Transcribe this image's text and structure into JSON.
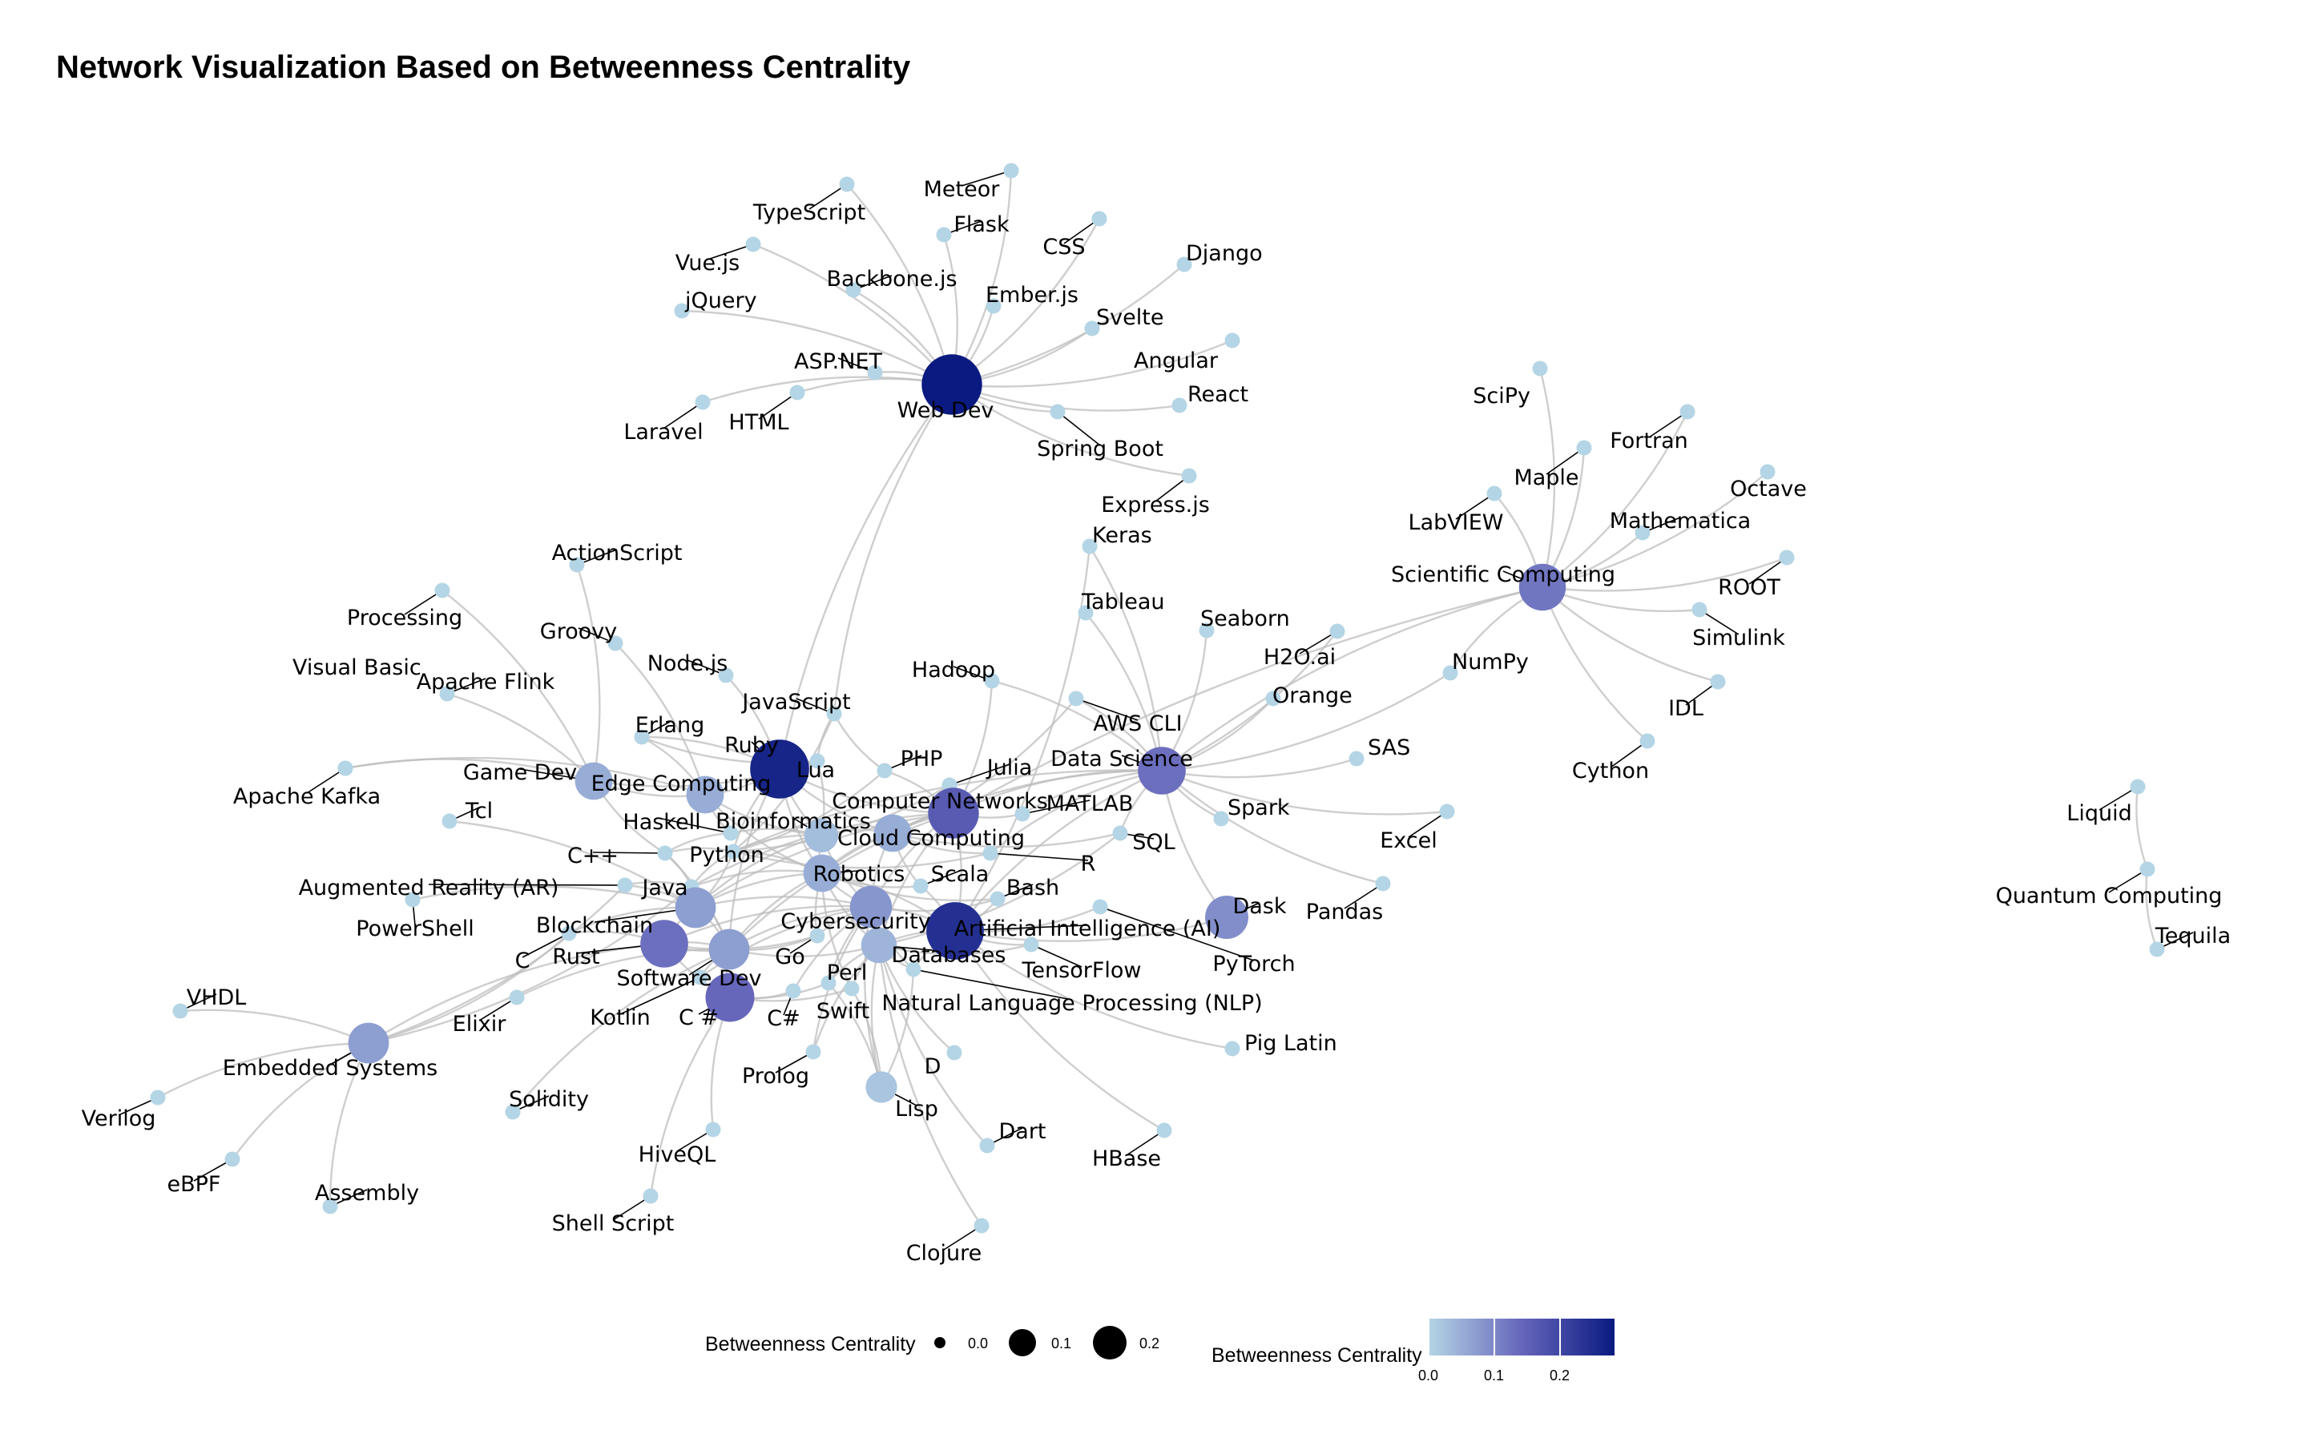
{
  "title": "Network Visualization Based on Betweenness Centrality",
  "colors": {
    "low": "#b4d5e5",
    "mid": "#6666bb",
    "high": "#0a1a80",
    "edge": "#bdbdbd"
  },
  "legend": {
    "size_title": "Betweenness Centrality",
    "size_breaks": [
      "0.0",
      "0.1",
      "0.2"
    ],
    "size_values": [
      0.0,
      0.1,
      0.2
    ],
    "color_title": "Betweenness Centrality",
    "color_breaks": [
      "0.0",
      "0.1",
      "0.2"
    ],
    "color_range": [
      0.0,
      0.28
    ]
  },
  "nodes": [
    {
      "id": "Web Dev",
      "c": 0.28
    },
    {
      "id": "TypeScript",
      "c": 0
    },
    {
      "id": "Meteor",
      "c": 0
    },
    {
      "id": "Flask",
      "c": 0
    },
    {
      "id": "CSS",
      "c": 0
    },
    {
      "id": "Vue.js",
      "c": 0
    },
    {
      "id": "Django",
      "c": 0
    },
    {
      "id": "jQuery",
      "c": 0
    },
    {
      "id": "Backbone.js",
      "c": 0
    },
    {
      "id": "Ember.js",
      "c": 0
    },
    {
      "id": "Svelte",
      "c": 0
    },
    {
      "id": "ASP.NET",
      "c": 0
    },
    {
      "id": "Angular",
      "c": 0
    },
    {
      "id": "React",
      "c": 0
    },
    {
      "id": "HTML",
      "c": 0
    },
    {
      "id": "Laravel",
      "c": 0
    },
    {
      "id": "Spring Boot",
      "c": 0
    },
    {
      "id": "Express.js",
      "c": 0
    },
    {
      "id": "Scientific Computing",
      "c": 0.12
    },
    {
      "id": "SciPy",
      "c": 0
    },
    {
      "id": "Fortran",
      "c": 0
    },
    {
      "id": "Maple",
      "c": 0
    },
    {
      "id": "Octave",
      "c": 0
    },
    {
      "id": "LabVIEW",
      "c": 0
    },
    {
      "id": "Mathematica",
      "c": 0
    },
    {
      "id": "ROOT",
      "c": 0
    },
    {
      "id": "Simulink",
      "c": 0
    },
    {
      "id": "NumPy",
      "c": 0
    },
    {
      "id": "IDL",
      "c": 0
    },
    {
      "id": "Cython",
      "c": 0
    },
    {
      "id": "Keras",
      "c": 0
    },
    {
      "id": "Tableau",
      "c": 0
    },
    {
      "id": "Seaborn",
      "c": 0
    },
    {
      "id": "H2O.ai",
      "c": 0
    },
    {
      "id": "Orange",
      "c": 0
    },
    {
      "id": "AWS CLI",
      "c": 0
    },
    {
      "id": "Hadoop",
      "c": 0
    },
    {
      "id": "Data Science",
      "c": 0.13
    },
    {
      "id": "SAS",
      "c": 0
    },
    {
      "id": "Spark",
      "c": 0
    },
    {
      "id": "Excel",
      "c": 0
    },
    {
      "id": "Pandas",
      "c": 0
    },
    {
      "id": "Dask",
      "c": 0.09
    },
    {
      "id": "PyTorch",
      "c": 0
    },
    {
      "id": "Pig Latin",
      "c": 0
    },
    {
      "id": "HBase",
      "c": 0
    },
    {
      "id": "ActionScript",
      "c": 0
    },
    {
      "id": "Processing",
      "c": 0
    },
    {
      "id": "Groovy",
      "c": 0
    },
    {
      "id": "Node.js",
      "c": 0
    },
    {
      "id": "Visual Basic",
      "c": 0
    },
    {
      "id": "Apache Flink",
      "c": 0
    },
    {
      "id": "JavaScript",
      "c": 0
    },
    {
      "id": "Erlang",
      "c": 0
    },
    {
      "id": "Ruby",
      "c": 0.26
    },
    {
      "id": "Lua",
      "c": 0
    },
    {
      "id": "PHP",
      "c": 0
    },
    {
      "id": "Julia",
      "c": 0
    },
    {
      "id": "Game Dev",
      "c": 0.05
    },
    {
      "id": "Edge Computing",
      "c": 0.05
    },
    {
      "id": "Apache Kafka",
      "c": 0
    },
    {
      "id": "Tcl",
      "c": 0
    },
    {
      "id": "Haskell",
      "c": 0
    },
    {
      "id": "Bioinformatics",
      "c": 0.03
    },
    {
      "id": "Computer Networks",
      "c": 0.16
    },
    {
      "id": "MATLAB",
      "c": 0
    },
    {
      "id": "Cloud Computing",
      "c": 0.05
    },
    {
      "id": "C++",
      "c": 0
    },
    {
      "id": "Python",
      "c": 0
    },
    {
      "id": "Robotics",
      "c": 0.05
    },
    {
      "id": "Scala",
      "c": 0
    },
    {
      "id": "R",
      "c": 0
    },
    {
      "id": "SQL",
      "c": 0
    },
    {
      "id": "Augmented Reality (AR)",
      "c": 0
    },
    {
      "id": "Java",
      "c": 0
    },
    {
      "id": "Bash",
      "c": 0
    },
    {
      "id": "PowerShell",
      "c": 0
    },
    {
      "id": "Blockchain",
      "c": 0.07
    },
    {
      "id": "Cybersecurity",
      "c": 0.08
    },
    {
      "id": "Artificial Intelligence (AI)",
      "c": 0.24
    },
    {
      "id": "C",
      "c": 0
    },
    {
      "id": "Rust",
      "c": 0.13
    },
    {
      "id": "Software Dev",
      "c": 0.07
    },
    {
      "id": "Go",
      "c": 0
    },
    {
      "id": "Databases",
      "c": 0.04
    },
    {
      "id": "TensorFlow",
      "c": 0
    },
    {
      "id": "Elixir",
      "c": 0
    },
    {
      "id": "Kotlin",
      "c": 0
    },
    {
      "id": "C #",
      "c": 0.14
    },
    {
      "id": "C#",
      "c": 0
    },
    {
      "id": "Perl",
      "c": 0
    },
    {
      "id": "Swift",
      "c": 0
    },
    {
      "id": "Natural Language Processing (NLP)",
      "c": 0
    },
    {
      "id": "VHDL",
      "c": 0
    },
    {
      "id": "Embedded Systems",
      "c": 0.07
    },
    {
      "id": "Verilog",
      "c": 0
    },
    {
      "id": "eBPF",
      "c": 0
    },
    {
      "id": "Assembly",
      "c": 0
    },
    {
      "id": "Solidity",
      "c": 0
    },
    {
      "id": "Prolog",
      "c": 0
    },
    {
      "id": "D",
      "c": 0
    },
    {
      "id": "Lisp",
      "c": 0.02
    },
    {
      "id": "Dart",
      "c": 0
    },
    {
      "id": "HiveQL",
      "c": 0
    },
    {
      "id": "Shell Script",
      "c": 0
    },
    {
      "id": "Clojure",
      "c": 0
    },
    {
      "id": "Liquid",
      "c": 0
    },
    {
      "id": "Quantum Computing",
      "c": 0
    },
    {
      "id": "Tequila",
      "c": 0
    }
  ],
  "edges": [
    [
      "Web Dev",
      "TypeScript"
    ],
    [
      "Web Dev",
      "Meteor"
    ],
    [
      "Web Dev",
      "Flask"
    ],
    [
      "Web Dev",
      "CSS"
    ],
    [
      "Web Dev",
      "Vue.js"
    ],
    [
      "Web Dev",
      "Django"
    ],
    [
      "Web Dev",
      "jQuery"
    ],
    [
      "Web Dev",
      "Backbone.js"
    ],
    [
      "Web Dev",
      "Ember.js"
    ],
    [
      "Web Dev",
      "Svelte"
    ],
    [
      "Web Dev",
      "ASP.NET"
    ],
    [
      "Web Dev",
      "Angular"
    ],
    [
      "Web Dev",
      "React"
    ],
    [
      "Web Dev",
      "HTML"
    ],
    [
      "Web Dev",
      "Laravel"
    ],
    [
      "Web Dev",
      "Spring Boot"
    ],
    [
      "Web Dev",
      "Express.js"
    ],
    [
      "Web Dev",
      "Ruby"
    ],
    [
      "Web Dev",
      "JavaScript"
    ],
    [
      "Scientific Computing",
      "SciPy"
    ],
    [
      "Scientific Computing",
      "Fortran"
    ],
    [
      "Scientific Computing",
      "Maple"
    ],
    [
      "Scientific Computing",
      "Octave"
    ],
    [
      "Scientific Computing",
      "LabVIEW"
    ],
    [
      "Scientific Computing",
      "Mathematica"
    ],
    [
      "Scientific Computing",
      "ROOT"
    ],
    [
      "Scientific Computing",
      "Simulink"
    ],
    [
      "Scientific Computing",
      "NumPy"
    ],
    [
      "Scientific Computing",
      "IDL"
    ],
    [
      "Scientific Computing",
      "Cython"
    ],
    [
      "Scientific Computing",
      "Data Science"
    ],
    [
      "Scientific Computing",
      "Computer Networks"
    ],
    [
      "Data Science",
      "Keras"
    ],
    [
      "Data Science",
      "Tableau"
    ],
    [
      "Data Science",
      "Seaborn"
    ],
    [
      "Data Science",
      "H2O.ai"
    ],
    [
      "Data Science",
      "Orange"
    ],
    [
      "Data Science",
      "AWS CLI"
    ],
    [
      "Data Science",
      "Hadoop"
    ],
    [
      "Data Science",
      "SAS"
    ],
    [
      "Data Science",
      "Spark"
    ],
    [
      "Data Science",
      "Excel"
    ],
    [
      "Data Science",
      "Pandas"
    ],
    [
      "Data Science",
      "Dask"
    ],
    [
      "Data Science",
      "NumPy"
    ],
    [
      "Data Science",
      "MATLAB"
    ],
    [
      "Data Science",
      "SQL"
    ],
    [
      "Data Science",
      "Computer Networks"
    ],
    [
      "Data Science",
      "Artificial Intelligence (AI)"
    ],
    [
      "Data Science",
      "R"
    ],
    [
      "Data Science",
      "Python"
    ],
    [
      "Data Science",
      "Cloud Computing"
    ],
    [
      "Artificial Intelligence (AI)",
      "PyTorch"
    ],
    [
      "Artificial Intelligence (AI)",
      "TensorFlow"
    ],
    [
      "Artificial Intelligence (AI)",
      "Pig Latin"
    ],
    [
      "Artificial Intelligence (AI)",
      "HBase"
    ],
    [
      "Artificial Intelligence (AI)",
      "Dask"
    ],
    [
      "Artificial Intelligence (AI)",
      "Natural Language Processing (NLP)"
    ],
    [
      "Artificial Intelligence (AI)",
      "Robotics"
    ],
    [
      "Artificial Intelligence (AI)",
      "Databases"
    ],
    [
      "Artificial Intelligence (AI)",
      "Cybersecurity"
    ],
    [
      "Artificial Intelligence (AI)",
      "Bash"
    ],
    [
      "Artificial Intelligence (AI)",
      "Scala"
    ],
    [
      "Artificial Intelligence (AI)",
      "Keras"
    ],
    [
      "Artificial Intelligence (AI)",
      "Computer Networks"
    ],
    [
      "Game Dev",
      "ActionScript"
    ],
    [
      "Game Dev",
      "Processing"
    ],
    [
      "Game Dev",
      "Visual Basic"
    ],
    [
      "Game Dev",
      "Apache Flink"
    ],
    [
      "Game Dev",
      "Edge Computing"
    ],
    [
      "Game Dev",
      "C++"
    ],
    [
      "Game Dev",
      "Lua"
    ],
    [
      "Edge Computing",
      "Groovy"
    ],
    [
      "Edge Computing",
      "Apache Kafka"
    ],
    [
      "Edge Computing",
      "Erlang"
    ],
    [
      "Edge Computing",
      "Ruby"
    ],
    [
      "Edge Computing",
      "Haskell"
    ],
    [
      "Edge Computing",
      "Bioinformatics"
    ],
    [
      "Edge Computing",
      "Robotics"
    ],
    [
      "Ruby",
      "Node.js"
    ],
    [
      "Ruby",
      "Lua"
    ],
    [
      "Ruby",
      "Erlang"
    ],
    [
      "Ruby",
      "Bioinformatics"
    ],
    [
      "Ruby",
      "Python"
    ],
    [
      "Ruby",
      "Software Dev"
    ],
    [
      "Ruby",
      "Cloud Computing"
    ],
    [
      "Ruby",
      "Robotics"
    ],
    [
      "Ruby",
      "Computer Networks"
    ],
    [
      "Computer Networks",
      "Julia"
    ],
    [
      "Computer Networks",
      "PHP"
    ],
    [
      "Computer Networks",
      "Hadoop"
    ],
    [
      "Computer Networks",
      "Cloud Computing"
    ],
    [
      "Computer Networks",
      "MATLAB"
    ],
    [
      "Computer Networks",
      "Robotics"
    ],
    [
      "Computer Networks",
      "Cybersecurity"
    ],
    [
      "Computer Networks",
      "Databases"
    ],
    [
      "Computer Networks",
      "Software Dev"
    ],
    [
      "Computer Networks",
      "Blockchain"
    ],
    [
      "Computer Networks",
      "Java"
    ],
    [
      "Cloud Computing",
      "AWS CLI"
    ],
    [
      "Cloud Computing",
      "R"
    ],
    [
      "Cloud Computing",
      "Scala"
    ],
    [
      "Cloud Computing",
      "Robotics"
    ],
    [
      "Cloud Computing",
      "Bioinformatics"
    ],
    [
      "Cloud Computing",
      "SQL"
    ],
    [
      "Cloud Computing",
      "Cybersecurity"
    ],
    [
      "Bioinformatics",
      "Haskell"
    ],
    [
      "Bioinformatics",
      "Python"
    ],
    [
      "Bioinformatics",
      "Robotics"
    ],
    [
      "Bioinformatics",
      "Lua"
    ],
    [
      "Bioinformatics",
      "Blockchain"
    ],
    [
      "Bioinformatics",
      "Cybersecurity"
    ],
    [
      "Robotics",
      "Java"
    ],
    [
      "Robotics",
      "Scala"
    ],
    [
      "Robotics",
      "Cybersecurity"
    ],
    [
      "Robotics",
      "Software Dev"
    ],
    [
      "Robotics",
      "Blockchain"
    ],
    [
      "Robotics",
      "Python"
    ],
    [
      "Robotics",
      "Databases"
    ],
    [
      "Robotics",
      "Go"
    ],
    [
      "Robotics",
      "Bash"
    ],
    [
      "Robotics",
      "Swift"
    ],
    [
      "Cybersecurity",
      "Go"
    ],
    [
      "Cybersecurity",
      "Perl"
    ],
    [
      "Cybersecurity",
      "Databases"
    ],
    [
      "Cybersecurity",
      "Software Dev"
    ],
    [
      "Cybersecurity",
      "Kotlin"
    ],
    [
      "Cybersecurity",
      "C#"
    ],
    [
      "Cybersecurity",
      "Bash"
    ],
    [
      "Cybersecurity",
      "Rust"
    ],
    [
      "Cybersecurity",
      "Blockchain"
    ],
    [
      "Cybersecurity",
      "Natural Language Processing (NLP)"
    ],
    [
      "Cybersecurity",
      "Lisp"
    ],
    [
      "Cybersecurity",
      "Prolog"
    ],
    [
      "Software Dev",
      "C #"
    ],
    [
      "Software Dev",
      "Rust"
    ],
    [
      "Software Dev",
      "Blockchain"
    ],
    [
      "Software Dev",
      "Kotlin"
    ],
    [
      "Software Dev",
      "Go"
    ],
    [
      "Software Dev",
      "Java"
    ],
    [
      "Software Dev",
      "C++"
    ],
    [
      "Software Dev",
      "Elixir"
    ],
    [
      "Software Dev",
      "Solidity"
    ],
    [
      "Software Dev",
      "Databases"
    ],
    [
      "Blockchain",
      "Rust"
    ],
    [
      "Blockchain",
      "C"
    ],
    [
      "Blockchain",
      "Java"
    ],
    [
      "Blockchain",
      "PowerShell"
    ],
    [
      "Blockchain",
      "Augmented Reality (AR)"
    ],
    [
      "Blockchain",
      "Tcl"
    ],
    [
      "Blockchain",
      "Python"
    ],
    [
      "Rust",
      "C"
    ],
    [
      "Rust",
      "Embedded Systems"
    ],
    [
      "Rust",
      "Go"
    ],
    [
      "Rust",
      "C #"
    ],
    [
      "Rust",
      "Software Dev"
    ],
    [
      "Databases",
      "Swift"
    ],
    [
      "Databases",
      "Perl"
    ],
    [
      "Databases",
      "D"
    ],
    [
      "Databases",
      "Dart"
    ],
    [
      "Databases",
      "Clojure"
    ],
    [
      "Databases",
      "Lisp"
    ],
    [
      "Databases",
      "Prolog"
    ],
    [
      "Databases",
      "Natural Language Processing (NLP)"
    ],
    [
      "Databases",
      "TensorFlow"
    ],
    [
      "Databases",
      "SQL"
    ],
    [
      "C #",
      "HiveQL"
    ],
    [
      "C #",
      "Shell Script"
    ],
    [
      "C #",
      "C#"
    ],
    [
      "C #",
      "Perl"
    ],
    [
      "C #",
      "Swift"
    ],
    [
      "Embedded Systems",
      "VHDL"
    ],
    [
      "Embedded Systems",
      "Verilog"
    ],
    [
      "Embedded Systems",
      "eBPF"
    ],
    [
      "Embedded Systems",
      "Assembly"
    ],
    [
      "Embedded Systems",
      "C"
    ],
    [
      "Embedded Systems",
      "Augmented Reality (AR)"
    ],
    [
      "Embedded Systems",
      "Java"
    ],
    [
      "Lisp",
      "Swift"
    ],
    [
      "Lisp",
      "Natural Language Processing (NLP)"
    ],
    [
      "Lisp",
      "Perl"
    ],
    [
      "Python",
      "Java"
    ],
    [
      "Python",
      "C++"
    ],
    [
      "Python",
      "Julia"
    ],
    [
      "Python",
      "R"
    ],
    [
      "Python",
      "JavaScript"
    ],
    [
      "Python",
      "PHP"
    ],
    [
      "Java",
      "C++"
    ],
    [
      "Java",
      "Augmented Reality (AR)"
    ],
    [
      "JavaScript",
      "PHP"
    ],
    [
      "JavaScript",
      "Lua"
    ],
    [
      "Haskell",
      "C++"
    ],
    [
      "Erlang",
      "Lua"
    ],
    [
      "Liquid",
      "Quantum Computing"
    ],
    [
      "Quantum Computing",
      "Tequila"
    ]
  ]
}
